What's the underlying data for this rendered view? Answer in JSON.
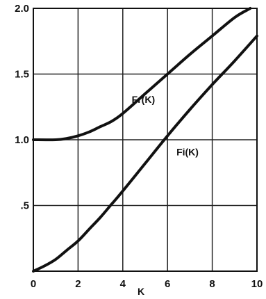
{
  "chart_data": {
    "type": "line",
    "title": "",
    "xlabel": "K",
    "ylabel": "",
    "xlim": [
      0,
      10
    ],
    "ylim": [
      0,
      2.0
    ],
    "grid": true,
    "x_ticks": [
      {
        "value": 0,
        "label": "0"
      },
      {
        "value": 2,
        "label": "2"
      },
      {
        "value": 4,
        "label": "4"
      },
      {
        "value": 6,
        "label": "6"
      },
      {
        "value": 8,
        "label": "8"
      },
      {
        "value": 10,
        "label": "10"
      }
    ],
    "y_ticks": [
      {
        "value": 0.5,
        "label": ".5"
      },
      {
        "value": 1.0,
        "label": "1.0"
      },
      {
        "value": 1.5,
        "label": "1.5"
      },
      {
        "value": 2.0,
        "label": "2.0"
      }
    ],
    "series": [
      {
        "name": "Fr(K)",
        "x": [
          0,
          1,
          1.5,
          2,
          2.5,
          3,
          3.5,
          4,
          5,
          6,
          7,
          8,
          9,
          9.7
        ],
        "y": [
          1.0,
          1.0,
          1.01,
          1.03,
          1.06,
          1.1,
          1.14,
          1.2,
          1.35,
          1.5,
          1.65,
          1.79,
          1.93,
          2.0
        ]
      },
      {
        "name": "Fi(K)",
        "x": [
          0,
          0.5,
          1,
          1.5,
          2,
          2.5,
          3,
          3.5,
          4,
          5,
          6,
          7,
          8,
          9,
          10
        ],
        "y": [
          0.0,
          0.04,
          0.09,
          0.16,
          0.23,
          0.32,
          0.41,
          0.51,
          0.61,
          0.82,
          1.03,
          1.23,
          1.42,
          1.6,
          1.79
        ]
      }
    ]
  }
}
